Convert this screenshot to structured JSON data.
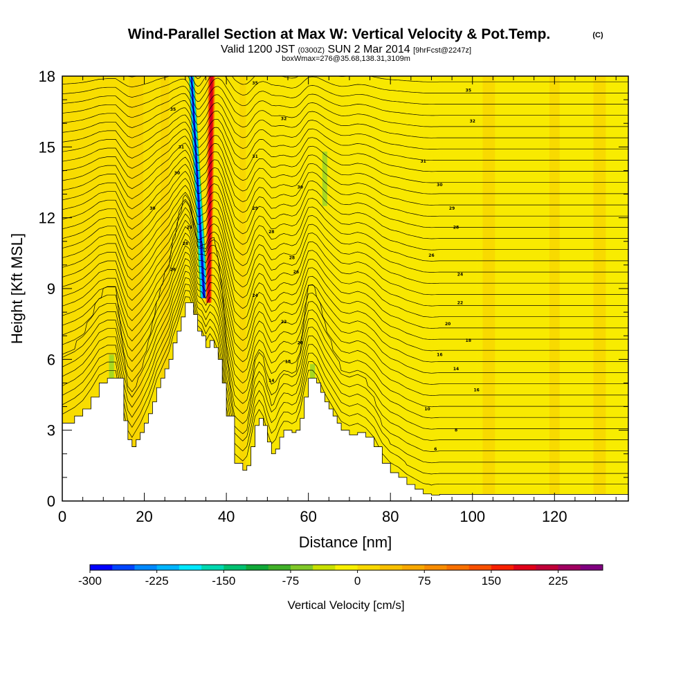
{
  "chart_data": {
    "type": "heatmap",
    "title": "Wind-Parallel Section at Max W: Vertical Velocity & Pot.Temp.",
    "title_mark": "(C)",
    "subtitle_main": "Valid 1200 JST",
    "subtitle_utc": "(0300Z)",
    "subtitle_date": "SUN 2 Mar 2014",
    "subtitle_fcst": "[9hrFcst@2247z]",
    "subtitle_box": "boxWmax=276@35.68,138.31,3109m",
    "xlabel": "Distance [nm]",
    "ylabel": "Height [Kft MSL]",
    "xlim": [
      0,
      138
    ],
    "ylim": [
      0,
      18
    ],
    "x_ticks": [
      0,
      20,
      40,
      60,
      80,
      100,
      120
    ],
    "y_ticks": [
      0,
      3,
      6,
      9,
      12,
      15,
      18
    ],
    "colorbar": {
      "label": "Vertical Velocity [cm/s]",
      "min": -300,
      "max": 250,
      "step": 25,
      "tick_labels": [
        "-300",
        "-225",
        "-150",
        "-75",
        "0",
        "75",
        "150",
        "225"
      ],
      "colors": [
        "#0000ff",
        "#0044ff",
        "#0088ff",
        "#00b4ff",
        "#00e8ff",
        "#00d8b0",
        "#00c070",
        "#10a838",
        "#40b028",
        "#80c828",
        "#c8e000",
        "#f8f000",
        "#f8d800",
        "#f8c000",
        "#f8a800",
        "#f88c00",
        "#f87000",
        "#f85000",
        "#f82000",
        "#e00018",
        "#c00038",
        "#a00060",
        "#800080"
      ]
    },
    "terrain_profile": {
      "x": [
        0,
        3,
        5,
        7,
        9,
        11,
        13,
        15,
        16,
        17,
        18,
        19,
        20,
        21,
        22,
        23,
        24,
        25,
        26,
        27,
        28,
        29,
        30,
        31,
        32,
        33,
        34,
        35,
        36,
        37,
        38,
        39,
        40,
        42,
        44,
        45,
        46,
        47,
        48,
        49,
        50,
        51,
        52,
        53,
        54,
        55,
        56,
        57,
        58,
        59,
        60,
        61,
        62,
        63,
        64,
        65,
        66,
        67,
        68,
        70,
        72,
        74,
        76,
        78,
        80,
        82,
        84,
        86,
        88,
        90,
        92,
        96,
        100,
        110,
        120,
        130,
        138
      ],
      "y": [
        3.3,
        3.6,
        3.9,
        4.4,
        5.0,
        5.2,
        5.2,
        3.4,
        2.6,
        2.3,
        2.6,
        2.9,
        3.3,
        3.7,
        4.2,
        4.8,
        5.2,
        5.6,
        6.0,
        6.7,
        7.2,
        7.8,
        8.4,
        8.4,
        7.9,
        7.2,
        7.0,
        6.5,
        6.8,
        6.5,
        6.0,
        5.0,
        3.6,
        1.6,
        1.3,
        1.5,
        2.3,
        3.2,
        3.5,
        3.2,
        2.5,
        2.0,
        2.2,
        2.7,
        3.0,
        3.0,
        2.9,
        3.0,
        3.5,
        4.4,
        5.2,
        5.2,
        5.0,
        4.6,
        4.2,
        3.9,
        3.6,
        3.3,
        3.0,
        2.8,
        2.9,
        2.7,
        2.3,
        1.6,
        1.2,
        1.0,
        0.7,
        0.5,
        0.3,
        0.25,
        0.28,
        0.28,
        0.28,
        0.28,
        0.28,
        0.28,
        0.28
      ]
    },
    "updraft_core": {
      "x": 36,
      "top_kft": 18,
      "base_kft": 8.4,
      "w_max_cms": 276
    },
    "downdraft_core": {
      "x": 33,
      "top_kft": 18,
      "base_kft": 8.6,
      "w_min_cms": -300
    },
    "isentrope_labels": [
      {
        "x": 47,
        "y": 17.7,
        "text": "35"
      },
      {
        "x": 99,
        "y": 17.4,
        "text": "35"
      },
      {
        "x": 27,
        "y": 16.6,
        "text": "35"
      },
      {
        "x": 54,
        "y": 16.2,
        "text": "32"
      },
      {
        "x": 100,
        "y": 16.1,
        "text": "32"
      },
      {
        "x": 29,
        "y": 15.0,
        "text": "31"
      },
      {
        "x": 47,
        "y": 14.6,
        "text": "31"
      },
      {
        "x": 88,
        "y": 14.4,
        "text": "31"
      },
      {
        "x": 28,
        "y": 13.9,
        "text": "30"
      },
      {
        "x": 58,
        "y": 13.3,
        "text": "30"
      },
      {
        "x": 92,
        "y": 13.4,
        "text": "30"
      },
      {
        "x": 22,
        "y": 12.4,
        "text": "30"
      },
      {
        "x": 47,
        "y": 12.4,
        "text": "29"
      },
      {
        "x": 95,
        "y": 12.4,
        "text": "29"
      },
      {
        "x": 31,
        "y": 11.6,
        "text": "29"
      },
      {
        "x": 51,
        "y": 11.4,
        "text": "28"
      },
      {
        "x": 96,
        "y": 11.6,
        "text": "28"
      },
      {
        "x": 30,
        "y": 10.9,
        "text": "28"
      },
      {
        "x": 56,
        "y": 10.3,
        "text": "28"
      },
      {
        "x": 90,
        "y": 10.4,
        "text": "26"
      },
      {
        "x": 27,
        "y": 9.8,
        "text": "26"
      },
      {
        "x": 57,
        "y": 9.7,
        "text": "26"
      },
      {
        "x": 97,
        "y": 9.6,
        "text": "24"
      },
      {
        "x": 47,
        "y": 8.7,
        "text": "24"
      },
      {
        "x": 97,
        "y": 8.4,
        "text": "22"
      },
      {
        "x": 54,
        "y": 7.6,
        "text": "22"
      },
      {
        "x": 94,
        "y": 7.5,
        "text": "20"
      },
      {
        "x": 58,
        "y": 6.7,
        "text": "20"
      },
      {
        "x": 99,
        "y": 6.8,
        "text": "18"
      },
      {
        "x": 55,
        "y": 5.9,
        "text": "18"
      },
      {
        "x": 92,
        "y": 6.2,
        "text": "16"
      },
      {
        "x": 96,
        "y": 5.6,
        "text": "14"
      },
      {
        "x": 51,
        "y": 5.1,
        "text": "14"
      },
      {
        "x": 101,
        "y": 4.7,
        "text": "16"
      },
      {
        "x": 89,
        "y": 3.9,
        "text": "10"
      },
      {
        "x": 96,
        "y": 3.0,
        "text": "8"
      },
      {
        "x": 91,
        "y": 2.2,
        "text": "6"
      }
    ]
  }
}
